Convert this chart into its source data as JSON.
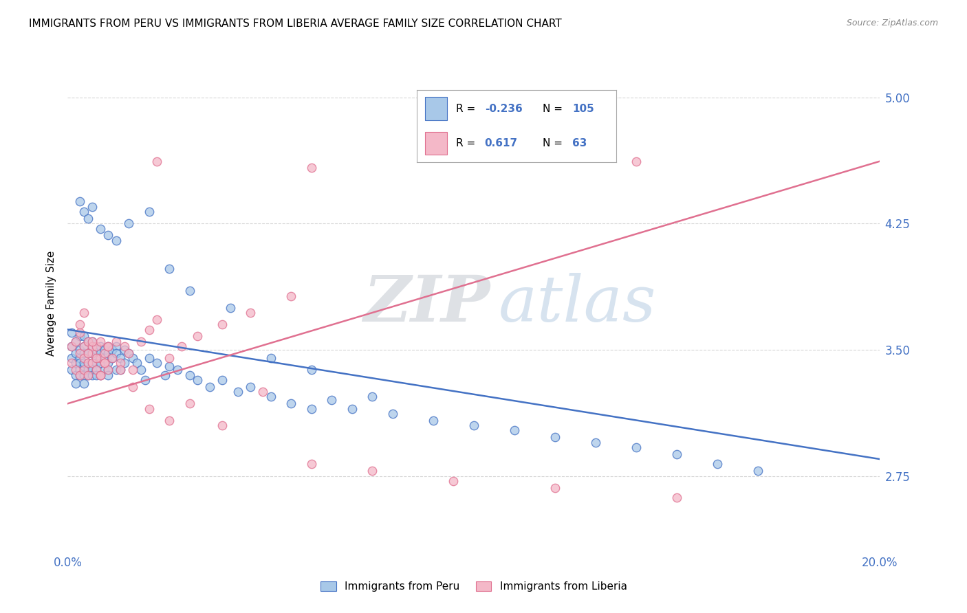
{
  "title": "IMMIGRANTS FROM PERU VS IMMIGRANTS FROM LIBERIA AVERAGE FAMILY SIZE CORRELATION CHART",
  "source": "Source: ZipAtlas.com",
  "ylabel": "Average Family Size",
  "xlim": [
    0.0,
    0.2
  ],
  "ylim": [
    2.3,
    5.25
  ],
  "yticks": [
    2.75,
    3.5,
    4.25,
    5.0
  ],
  "xticks": [
    0.0,
    0.05,
    0.1,
    0.15,
    0.2
  ],
  "peru_color": "#a8c8e8",
  "peru_line_color": "#4472c4",
  "liberia_color": "#f4b8c8",
  "liberia_line_color": "#e07090",
  "tick_label_color": "#4472c4",
  "peru_R": "-0.236",
  "peru_N": "105",
  "liberia_R": "0.617",
  "liberia_N": "63",
  "watermark_zip": "ZIP",
  "watermark_atlas": "atlas",
  "watermark_color_zip": "#d0d8e8",
  "watermark_color_atlas": "#b8cce4",
  "legend_label_peru": "Immigrants from Peru",
  "legend_label_liberia": "Immigrants from Liberia",
  "peru_line_x0": 0.0,
  "peru_line_y0": 3.62,
  "peru_line_x1": 0.2,
  "peru_line_y1": 2.85,
  "liberia_line_x0": 0.0,
  "liberia_line_y0": 3.18,
  "liberia_line_x1": 0.2,
  "liberia_line_y1": 4.62,
  "peru_x": [
    0.001,
    0.001,
    0.001,
    0.001,
    0.002,
    0.002,
    0.002,
    0.002,
    0.002,
    0.003,
    0.003,
    0.003,
    0.003,
    0.003,
    0.003,
    0.004,
    0.004,
    0.004,
    0.004,
    0.004,
    0.004,
    0.004,
    0.005,
    0.005,
    0.005,
    0.005,
    0.005,
    0.006,
    0.006,
    0.006,
    0.006,
    0.006,
    0.006,
    0.007,
    0.007,
    0.007,
    0.007,
    0.007,
    0.008,
    0.008,
    0.008,
    0.008,
    0.009,
    0.009,
    0.009,
    0.01,
    0.01,
    0.01,
    0.01,
    0.01,
    0.011,
    0.011,
    0.012,
    0.012,
    0.012,
    0.013,
    0.013,
    0.014,
    0.014,
    0.015,
    0.016,
    0.017,
    0.018,
    0.019,
    0.02,
    0.022,
    0.024,
    0.025,
    0.027,
    0.03,
    0.032,
    0.035,
    0.038,
    0.042,
    0.045,
    0.05,
    0.055,
    0.06,
    0.065,
    0.07,
    0.08,
    0.09,
    0.1,
    0.11,
    0.12,
    0.13,
    0.14,
    0.15,
    0.16,
    0.17,
    0.003,
    0.004,
    0.005,
    0.006,
    0.008,
    0.01,
    0.012,
    0.015,
    0.02,
    0.025,
    0.03,
    0.04,
    0.05,
    0.06,
    0.075
  ],
  "peru_y": [
    3.52,
    3.45,
    3.38,
    3.6,
    3.48,
    3.55,
    3.42,
    3.35,
    3.3,
    3.5,
    3.45,
    3.38,
    3.58,
    3.42,
    3.35,
    3.52,
    3.48,
    3.4,
    3.35,
    3.58,
    3.42,
    3.3,
    3.55,
    3.48,
    3.42,
    3.38,
    3.35,
    3.52,
    3.48,
    3.55,
    3.42,
    3.38,
    3.35,
    3.5,
    3.45,
    3.42,
    3.38,
    3.35,
    3.52,
    3.48,
    3.42,
    3.35,
    3.5,
    3.45,
    3.38,
    3.52,
    3.48,
    3.42,
    3.38,
    3.35,
    3.5,
    3.45,
    3.52,
    3.48,
    3.38,
    3.45,
    3.38,
    3.5,
    3.42,
    3.48,
    3.45,
    3.42,
    3.38,
    3.32,
    3.45,
    3.42,
    3.35,
    3.4,
    3.38,
    3.35,
    3.32,
    3.28,
    3.32,
    3.25,
    3.28,
    3.22,
    3.18,
    3.15,
    3.2,
    3.15,
    3.12,
    3.08,
    3.05,
    3.02,
    2.98,
    2.95,
    2.92,
    2.88,
    2.82,
    2.78,
    4.38,
    4.32,
    4.28,
    4.35,
    4.22,
    4.18,
    4.15,
    4.25,
    4.32,
    3.98,
    3.85,
    3.75,
    3.45,
    3.38,
    3.22
  ],
  "liberia_x": [
    0.001,
    0.001,
    0.002,
    0.002,
    0.003,
    0.003,
    0.003,
    0.004,
    0.004,
    0.004,
    0.005,
    0.005,
    0.005,
    0.006,
    0.006,
    0.006,
    0.007,
    0.007,
    0.008,
    0.008,
    0.008,
    0.009,
    0.009,
    0.01,
    0.01,
    0.011,
    0.012,
    0.013,
    0.014,
    0.015,
    0.016,
    0.018,
    0.02,
    0.022,
    0.025,
    0.028,
    0.032,
    0.038,
    0.045,
    0.055,
    0.003,
    0.004,
    0.005,
    0.006,
    0.007,
    0.008,
    0.009,
    0.01,
    0.013,
    0.016,
    0.02,
    0.025,
    0.03,
    0.038,
    0.048,
    0.06,
    0.075,
    0.095,
    0.12,
    0.15,
    0.022,
    0.06,
    0.14
  ],
  "liberia_y": [
    3.42,
    3.52,
    3.38,
    3.55,
    3.48,
    3.35,
    3.6,
    3.45,
    3.52,
    3.38,
    3.42,
    3.55,
    3.35,
    3.48,
    3.52,
    3.42,
    3.38,
    3.52,
    3.55,
    3.45,
    3.35,
    3.48,
    3.42,
    3.52,
    3.38,
    3.45,
    3.55,
    3.42,
    3.52,
    3.48,
    3.38,
    3.55,
    3.62,
    3.68,
    3.45,
    3.52,
    3.58,
    3.65,
    3.72,
    3.82,
    3.65,
    3.72,
    3.48,
    3.55,
    3.45,
    3.35,
    3.42,
    3.52,
    3.38,
    3.28,
    3.15,
    3.08,
    3.18,
    3.05,
    3.25,
    2.82,
    2.78,
    2.72,
    2.68,
    2.62,
    4.62,
    4.58,
    4.62
  ]
}
